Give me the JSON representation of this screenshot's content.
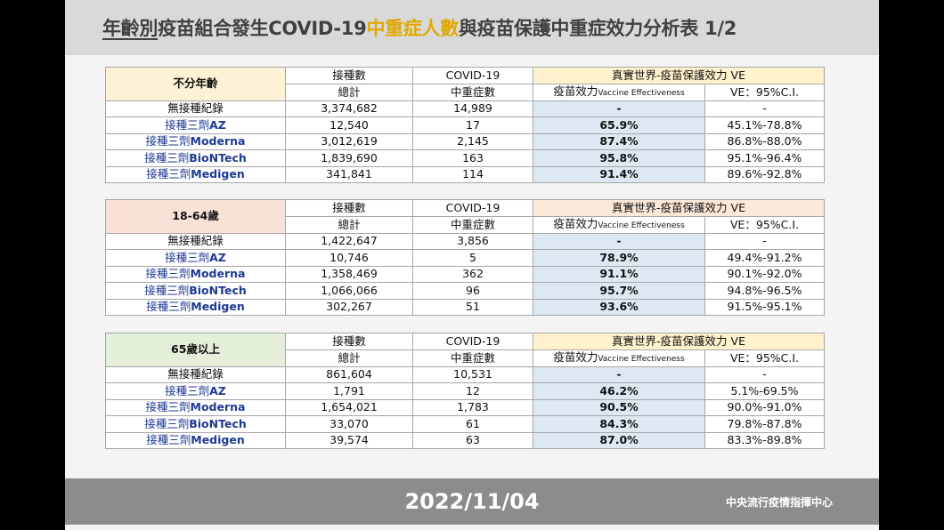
{
  "title": {
    "part1": "年齡別",
    "part2": "疫苗組合發生COVID-19",
    "highlight": "中重症人數",
    "part3": "與疫苗保護中重症效力分析表 1/2"
  },
  "header": {
    "col1_top": "接種數",
    "col1_bottom": "總計",
    "col2_top": "COVID-19",
    "col2_bottom": "中重症數",
    "ve_top": "真實世界-疫苗保護效力 VE",
    "ve_label_zh": "疫苗效力",
    "ve_label_en": "Vaccine Effectiveness",
    "ci_label": "VE：95%C.I."
  },
  "groups": [
    {
      "name": "不分年齡",
      "rows": [
        {
          "prefix": "無接種紀錄",
          "brand": "",
          "total": "3,374,682",
          "cases": "14,989",
          "ve": "-",
          "ci": "-"
        },
        {
          "prefix": "接種三劑",
          "brand": "AZ",
          "total": "12,540",
          "cases": "17",
          "ve": "65.9%",
          "ci": "45.1%-78.8%"
        },
        {
          "prefix": "接種三劑",
          "brand": "Moderna",
          "total": "3,012,619",
          "cases": "2,145",
          "ve": "87.4%",
          "ci": "86.8%-88.0%"
        },
        {
          "prefix": "接種三劑",
          "brand": "BioNTech",
          "total": "1,839,690",
          "cases": "163",
          "ve": "95.8%",
          "ci": "95.1%-96.4%"
        },
        {
          "prefix": "接種三劑",
          "brand": "Medigen",
          "total": "341,841",
          "cases": "114",
          "ve": "91.4%",
          "ci": "89.6%-92.8%"
        }
      ]
    },
    {
      "name": "18-64歲",
      "rows": [
        {
          "prefix": "無接種紀錄",
          "brand": "",
          "total": "1,422,647",
          "cases": "3,856",
          "ve": "-",
          "ci": "-"
        },
        {
          "prefix": "接種三劑",
          "brand": "AZ",
          "total": "10,746",
          "cases": "5",
          "ve": "78.9%",
          "ci": "49.4%-91.2%"
        },
        {
          "prefix": "接種三劑",
          "brand": "Moderna",
          "total": "1,358,469",
          "cases": "362",
          "ve": "91.1%",
          "ci": "90.1%-92.0%"
        },
        {
          "prefix": "接種三劑",
          "brand": "BioNTech",
          "total": "1,066,066",
          "cases": "96",
          "ve": "95.7%",
          "ci": "94.8%-96.5%"
        },
        {
          "prefix": "接種三劑",
          "brand": "Medigen",
          "total": "302,267",
          "cases": "51",
          "ve": "93.6%",
          "ci": "91.5%-95.1%"
        }
      ]
    },
    {
      "name": "65歲以上",
      "rows": [
        {
          "prefix": "無接種紀錄",
          "brand": "",
          "total": "861,604",
          "cases": "10,531",
          "ve": "-",
          "ci": "-"
        },
        {
          "prefix": "接種三劑",
          "brand": "AZ",
          "total": "1,791",
          "cases": "12",
          "ve": "46.2%",
          "ci": "5.1%-69.5%"
        },
        {
          "prefix": "接種三劑",
          "brand": "Moderna",
          "total": "1,654,021",
          "cases": "1,783",
          "ve": "90.5%",
          "ci": "90.0%-91.0%"
        },
        {
          "prefix": "接種三劑",
          "brand": "BioNTech",
          "total": "33,070",
          "cases": "61",
          "ve": "84.3%",
          "ci": "79.8%-87.8%"
        },
        {
          "prefix": "接種三劑",
          "brand": "Medigen",
          "total": "39,574",
          "cases": "63",
          "ve": "87.0%",
          "ci": "83.3%-89.8%"
        }
      ]
    }
  ],
  "footer": {
    "date": "2022/11/04",
    "org": "中央流行疫情指揮中心"
  },
  "colors": {
    "highlight": "#e0a800",
    "ve_text": "#c00000",
    "brand_text": "#1f3a93",
    "ve_fill": "#dde8f3"
  }
}
